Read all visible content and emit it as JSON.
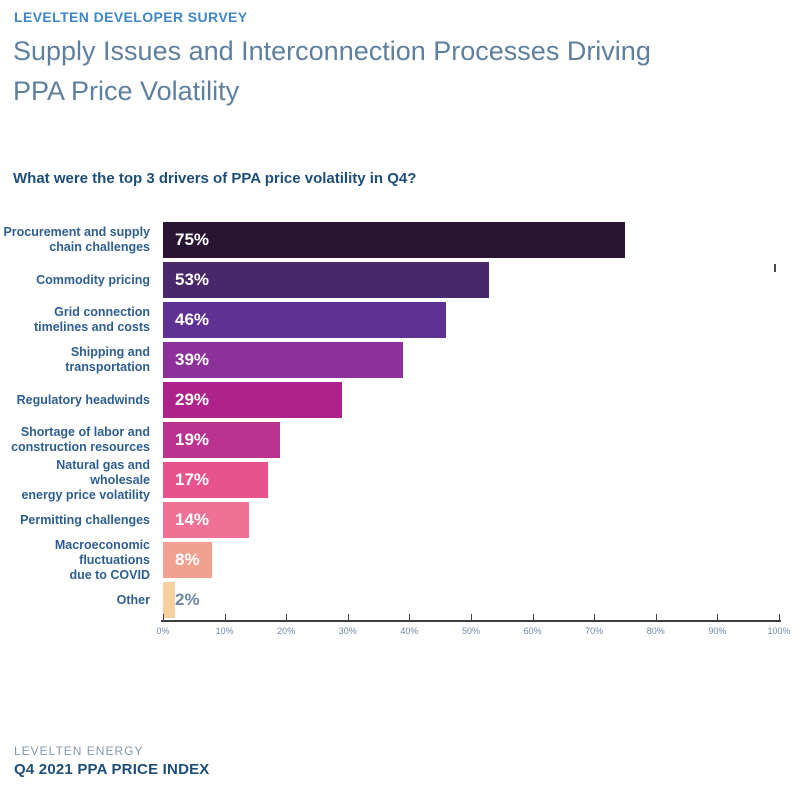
{
  "page": {
    "eyebrow": "LEVELTEN DEVELOPER SURVEY",
    "title_line1": "Supply Issues and Interconnection Processes Driving",
    "title_line2": "PPA Price Volatility",
    "question": "What were the top 3 drivers of PPA price volatility in Q4?",
    "footer_brand": "LEVELTEN ENERGY",
    "footer_report": "Q4 2021 PPA PRICE INDEX"
  },
  "colors": {
    "eyebrow_blue": "#3e86c7",
    "title_gray_blue": "#5f7f9e",
    "question_navy": "#1d4e79",
    "category_label_blue": "#2d5e92",
    "axis_line": "#3d3d3d",
    "axis_text": "#6f88a5",
    "value_label_inside": "#ffffff",
    "value_label_outside": "#6b87a3"
  },
  "chart_data": {
    "type": "bar",
    "orientation": "horizontal",
    "title": "What were the top 3 drivers of PPA price volatility in Q4?",
    "categories": [
      "Procurement and supply\nchain challenges",
      "Commodity pricing",
      "Grid connection\ntimelines and costs",
      "Shipping and\ntransportation",
      "Regulatory headwinds",
      "Shortage of labor and\nconstruction resources",
      "Natural gas and wholesale\nenergy price volatility",
      "Permitting challenges",
      "Macroeconomic\nfluctuations\ndue to COVID",
      "Other"
    ],
    "values": [
      75,
      53,
      46,
      39,
      29,
      19,
      17,
      14,
      8,
      2
    ],
    "value_labels": [
      "75%",
      "53%",
      "46%",
      "39%",
      "29%",
      "19%",
      "17%",
      "14%",
      "8%",
      "2%"
    ],
    "bar_colors": [
      "#2a1433",
      "#48276a",
      "#5e3193",
      "#8c3199",
      "#ad238b",
      "#ba3390",
      "#e8538d",
      "#ef7296",
      "#f0a190",
      "#f8cf9e"
    ],
    "xlabel": "",
    "ylabel": "",
    "xlim": [
      0,
      100
    ],
    "x_ticks": [
      "0%",
      "10%",
      "20%",
      "30%",
      "40%",
      "50%",
      "60%",
      "70%",
      "80%",
      "90%",
      "100%"
    ],
    "grid": false,
    "legend": false
  }
}
